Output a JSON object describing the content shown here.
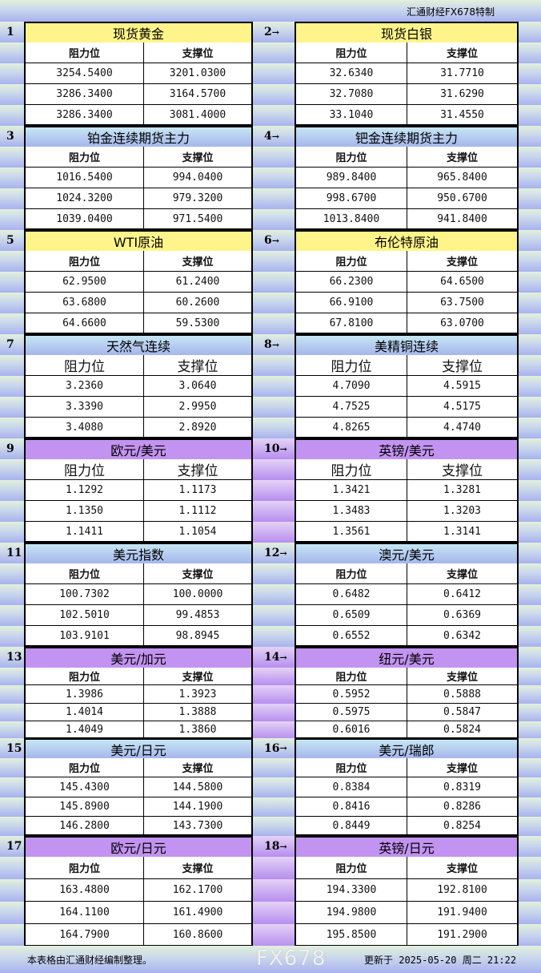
{
  "header": {
    "brand": "汇通财经FX678特制"
  },
  "columns": {
    "resistance": "阻力位",
    "support": "支撑位"
  },
  "rows": [
    {
      "left": {
        "num": "1",
        "title": "现货黄金",
        "color": "#fff48a",
        "res": [
          "3254.5400",
          "3286.3400",
          "3286.3400"
        ],
        "sup": [
          "3201.0300",
          "3164.5700",
          "3081.4000"
        ]
      },
      "right": {
        "num": "2",
        "title": "现货白银",
        "res": [
          "32.6340",
          "32.7080",
          "33.1040"
        ],
        "sup": [
          "31.7710",
          "31.6290",
          "31.4550"
        ]
      }
    },
    {
      "left": {
        "num": "3",
        "title": "铂金连续期货主力",
        "res": [
          "1016.5400",
          "1024.3200",
          "1039.0400"
        ],
        "sup": [
          "994.0400",
          "979.3200",
          "971.5400"
        ]
      },
      "right": {
        "num": "4",
        "title": "钯金连续期货主力",
        "res": [
          "989.8400",
          "998.6700",
          "1013.8400"
        ],
        "sup": [
          "965.8400",
          "950.6700",
          "941.8400"
        ]
      }
    },
    {
      "left": {
        "num": "5",
        "title": "WTI原油",
        "res": [
          "62.9500",
          "63.6800",
          "64.6600"
        ],
        "sup": [
          "61.2400",
          "60.2600",
          "59.5300"
        ]
      },
      "right": {
        "num": "6",
        "title": "布伦特原油",
        "res": [
          "66.2300",
          "66.9100",
          "67.8100"
        ],
        "sup": [
          "64.6500",
          "63.7500",
          "63.0700"
        ]
      }
    },
    {
      "left": {
        "num": "7",
        "title": "天然气连续",
        "res": [
          "3.2360",
          "3.3390",
          "3.4080"
        ],
        "sup": [
          "3.0640",
          "2.9950",
          "2.8920"
        ]
      },
      "right": {
        "num": "8",
        "title": "美精铜连续",
        "res": [
          "4.7090",
          "4.7525",
          "4.8265"
        ],
        "sup": [
          "4.5915",
          "4.5175",
          "4.4740"
        ]
      }
    },
    {
      "left": {
        "num": "9",
        "title": "欧元/美元",
        "res": [
          "1.1292",
          "1.1350",
          "1.1411"
        ],
        "sup": [
          "1.1173",
          "1.1112",
          "1.1054"
        ]
      },
      "right": {
        "num": "10",
        "title": "英镑/美元",
        "res": [
          "1.3421",
          "1.3483",
          "1.3561"
        ],
        "sup": [
          "1.3281",
          "1.3203",
          "1.3141"
        ]
      }
    },
    {
      "left": {
        "num": "11",
        "title": "美元指数",
        "res": [
          "100.7302",
          "102.5010",
          "103.9101"
        ],
        "sup": [
          "100.0000",
          "99.4853",
          "98.8945"
        ]
      },
      "right": {
        "num": "12",
        "title": "澳元/美元",
        "res": [
          "0.6482",
          "0.6509",
          "0.6552"
        ],
        "sup": [
          "0.6412",
          "0.6369",
          "0.6342"
        ]
      }
    },
    {
      "left": {
        "num": "13",
        "title": "美元/加元",
        "res": [
          "1.3986",
          "1.4014",
          "1.4049"
        ],
        "sup": [
          "1.3923",
          "1.3888",
          "1.3860"
        ]
      },
      "right": {
        "num": "14",
        "title": "纽元/美元",
        "res": [
          "0.5952",
          "0.5975",
          "0.6016"
        ],
        "sup": [
          "0.5888",
          "0.5847",
          "0.5824"
        ]
      }
    },
    {
      "left": {
        "num": "15",
        "title": "美元/日元",
        "res": [
          "145.4300",
          "145.8900",
          "146.2800"
        ],
        "sup": [
          "144.5800",
          "144.1900",
          "143.7300"
        ]
      },
      "right": {
        "num": "16",
        "title": "美元/瑞郎",
        "res": [
          "0.8384",
          "0.8416",
          "0.8449"
        ],
        "sup": [
          "0.8319",
          "0.8286",
          "0.8254"
        ]
      }
    },
    {
      "left": {
        "num": "17",
        "title": "欧元/日元",
        "res": [
          "163.4800",
          "164.1100",
          "164.7900"
        ],
        "sup": [
          "162.1700",
          "161.4900",
          "160.8600"
        ]
      },
      "right": {
        "num": "18",
        "title": "英镑/日元",
        "res": [
          "194.3300",
          "194.9800",
          "195.8500"
        ],
        "sup": [
          "192.8100",
          "191.9400",
          "191.2900"
        ]
      }
    }
  ],
  "footer": {
    "note": "本表格由汇通财经编制整理。",
    "updated": "更新于 2025-05-20 周二 21:22",
    "watermark": "FX678"
  },
  "colors": {
    "yellow": "#fff48a",
    "blue": "#b6cef0",
    "purple": "#c293f0"
  }
}
